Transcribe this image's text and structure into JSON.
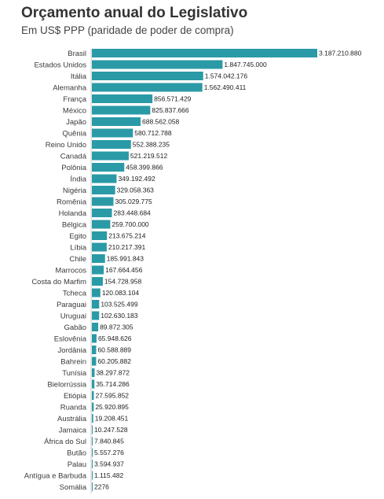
{
  "chart_data": {
    "type": "bar",
    "orientation": "horizontal",
    "title": "Orçamento anual do Legislativo",
    "subtitle": "Em US$ PPP (paridade de poder de compra)",
    "bar_color": "#2a9aa6",
    "xlim": [
      0,
      3187210880
    ],
    "categories": [
      "Brasil",
      "Estados Unidos",
      "Itália",
      "Alemanha",
      "França",
      "México",
      "Japão",
      "Quênia",
      "Reino Unido",
      "Canadá",
      "Polônia",
      "Índia",
      "Nigéria",
      "Romênia",
      "Holanda",
      "Bélgica",
      "Egito",
      "Líbia",
      "Chile",
      "Marrocos",
      "Costa do Marfim",
      "Tcheca",
      "Paraguai",
      "Uruguai",
      "Gabão",
      "Eslovênia",
      "Jordânia",
      "Bahrein",
      "Tunísia",
      "Bielorrússia",
      "Etiópia",
      "Ruanda",
      "Austrália",
      "Jamaica",
      "África do Sul",
      "Butão",
      "Palau",
      "Antígua e Barbuda",
      "Somália"
    ],
    "values": [
      3187210880,
      1847745000,
      1574042176,
      1562490411,
      856571429,
      825837666,
      688562058,
      580712788,
      552388235,
      521219512,
      458399866,
      349192492,
      329058363,
      305029775,
      283448684,
      259700000,
      213675214,
      210217391,
      185991843,
      167664456,
      154728958,
      120083104,
      103525499,
      102630183,
      89872305,
      65948626,
      60588889,
      60205882,
      38297872,
      35714286,
      27595852,
      25920895,
      19208451,
      10247528,
      7840845,
      5557276,
      3594937,
      1115482,
      2276
    ],
    "value_labels": [
      "3.187.210.880",
      "1.847.745.000",
      "1.574.042.176",
      "1.562.490.411",
      "856.571.429",
      "825.837.666",
      "688.562.058",
      "580.712.788",
      "552.388.235",
      "521.219.512",
      "458.399.866",
      "349.192.492",
      "329.058.363",
      "305.029.775",
      "283.448.684",
      "259.700.000",
      "213.675.214",
      "210.217.391",
      "185.991.843",
      "167.664.456",
      "154.728.958",
      "120.083.104",
      "103.525.499",
      "102.630.183",
      "89.872.305",
      "65.948.626",
      "60.588.889",
      "60.205.882",
      "38.297.872",
      "35.714.286",
      "27.595.852",
      "25.920.895",
      "19.208.451",
      "10.247.528",
      "7.840.845",
      "5.557.276",
      "3.594.937",
      "1.115.482",
      "2276"
    ]
  }
}
